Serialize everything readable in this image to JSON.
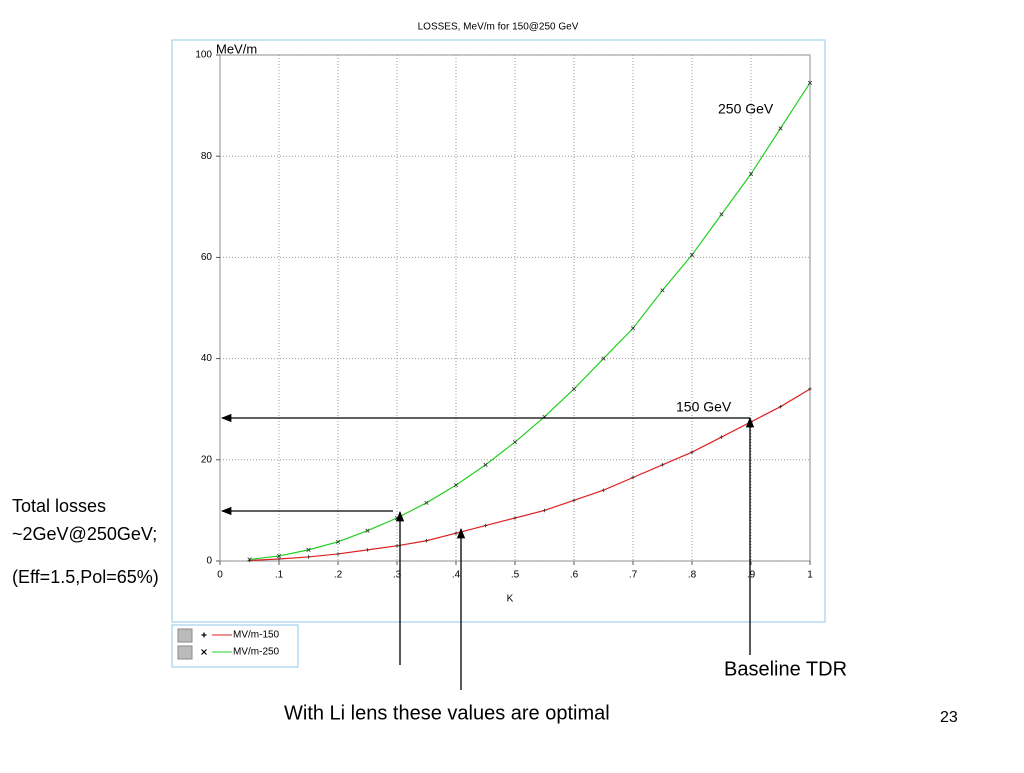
{
  "chart_data": {
    "type": "line",
    "title": "LOSSES,  MeV/m for 150@250 GeV",
    "y_label": "MeV/m",
    "x_label": "K",
    "x": [
      0.05,
      0.1,
      0.15,
      0.2,
      0.25,
      0.3,
      0.35,
      0.4,
      0.45,
      0.5,
      0.55,
      0.6,
      0.65,
      0.7,
      0.75,
      0.8,
      0.85,
      0.9,
      0.95,
      1
    ],
    "series": [
      {
        "name": "MV/m-150",
        "color": "#e02020",
        "marker": "+",
        "values": [
          0.1,
          0.4,
          0.8,
          1.4,
          2.2,
          3,
          4,
          5.5,
          7,
          8.5,
          10,
          12,
          14,
          16.5,
          19,
          21.5,
          24.5,
          27.5,
          30.5,
          34
        ]
      },
      {
        "name": "MV/m-250",
        "color": "#20d020",
        "marker": "x",
        "values": [
          0.3,
          1,
          2.2,
          3.8,
          6,
          8.5,
          11.5,
          15,
          19,
          23.5,
          28.5,
          34,
          40,
          46,
          53.5,
          60.5,
          68.5,
          76.5,
          85.5,
          94.5
        ]
      }
    ],
    "xlim": [
      0,
      1
    ],
    "ylim": [
      0,
      100
    ],
    "xticks": [
      0,
      {
        "value": 0.1,
        "label": ".1"
      },
      {
        "value": 0.2,
        "label": ".2"
      },
      {
        "value": 0.3,
        "label": ".3"
      },
      {
        "value": 0.4,
        "label": ".4"
      },
      {
        "value": 0.5,
        "label": ".5"
      },
      {
        "value": 0.6,
        "label": ".6"
      },
      {
        "value": 0.7,
        "label": ".7"
      },
      {
        "value": 0.8,
        "label": ".8"
      },
      {
        "value": 0.9,
        "label": ".9"
      },
      1
    ],
    "yticks": [
      0,
      20,
      40,
      60,
      80,
      100
    ],
    "grid": true,
    "annotations": [
      "250 GeV",
      "150 GeV",
      "Total losses",
      "~2GeV@250GeV;",
      "(Eff=1.5,Pol=65%)",
      "Baseline TDR",
      "With Li lens these values are optimal"
    ],
    "page_number": "23"
  }
}
